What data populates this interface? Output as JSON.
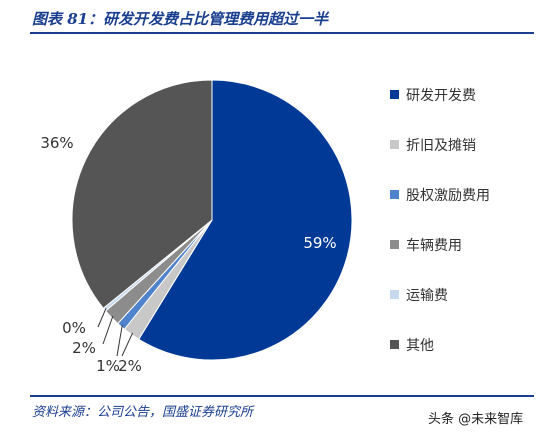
{
  "title": "图表 81：研发开发费占比管理费用超过一半",
  "source": "资料来源：公司公告，国盛证券研究所",
  "watermark": "头条 @未来智库",
  "chart_data": {
    "type": "pie",
    "title": "图表 81：研发开发费占比管理费用超过一半",
    "legend_position": "right",
    "slices": [
      {
        "name": "研发开发费",
        "value": 59,
        "label": "59%",
        "color": "#003a96"
      },
      {
        "name": "折旧及摊销",
        "value": 2,
        "label": "2%",
        "color": "#c8c8c8"
      },
      {
        "name": "股权激励费用",
        "value": 1,
        "label": "1%",
        "color": "#4f83cc"
      },
      {
        "name": "车辆费用",
        "value": 2,
        "label": "2%",
        "color": "#8c8c8c"
      },
      {
        "name": "运输费",
        "value": 0.4,
        "label": "0%",
        "color": "#c6d9ef"
      },
      {
        "name": "其他",
        "value": 36,
        "label": "36%",
        "color": "#555555"
      }
    ]
  }
}
